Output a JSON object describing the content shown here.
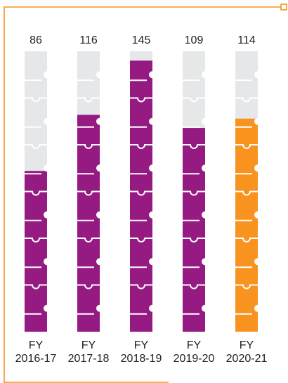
{
  "chart_data": {
    "type": "bar",
    "categories": [
      [
        "FY",
        "2016-17"
      ],
      [
        "FY",
        "2017-18"
      ],
      [
        "FY",
        "2018-19"
      ],
      [
        "FY",
        "2019-20"
      ],
      [
        "FY",
        "2020-21"
      ]
    ],
    "values": [
      86,
      116,
      145,
      109,
      114
    ],
    "ylim": [
      0,
      150
    ],
    "grid": false,
    "legend": "none",
    "colors": {
      "bar": "#951a81",
      "highlight_bar": "#f7931e",
      "track": "#e6e7e8",
      "frame": "#f7931e",
      "piece_lines": "#ffffff"
    },
    "highlight_index": 4
  }
}
